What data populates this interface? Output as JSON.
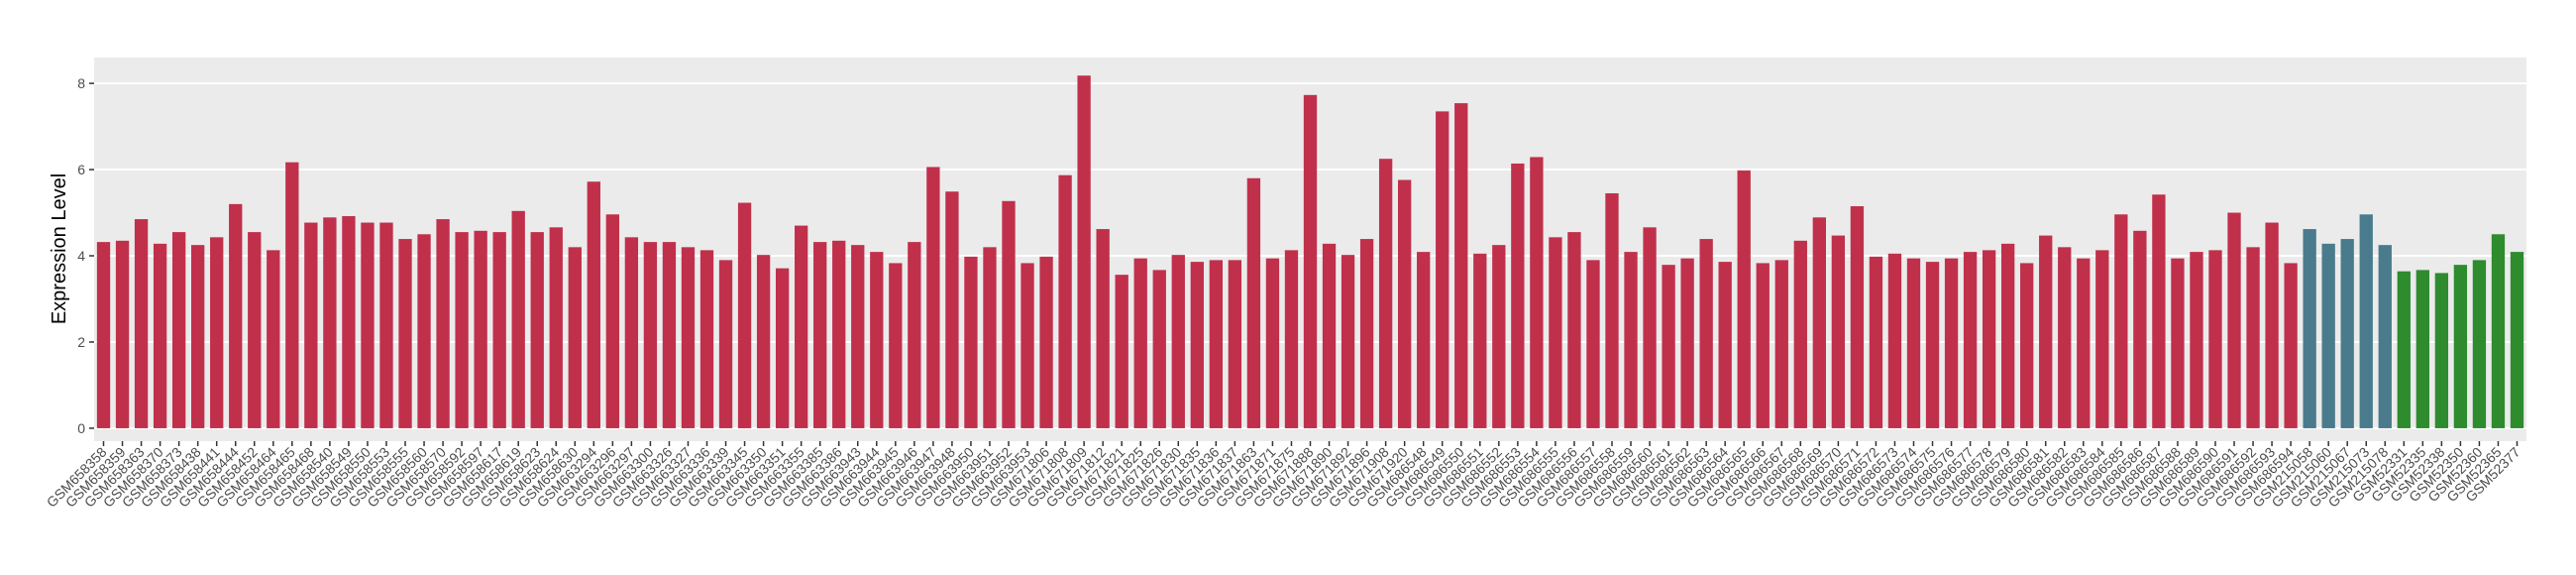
{
  "chart_data": {
    "type": "bar",
    "y_label": "Expression Level",
    "categories": [
      "GSM658358",
      "GSM658359",
      "GSM658363",
      "GSM658370",
      "GSM658373",
      "GSM658438",
      "GSM658441",
      "GSM658444",
      "GSM658452",
      "GSM658464",
      "GSM658465",
      "GSM658468",
      "GSM658540",
      "GSM658549",
      "GSM658550",
      "GSM658553",
      "GSM658555",
      "GSM658560",
      "GSM658570",
      "GSM658592",
      "GSM658597",
      "GSM658617",
      "GSM658619",
      "GSM658623",
      "GSM658624",
      "GSM658630",
      "GSM663294",
      "GSM663296",
      "GSM663297",
      "GSM663300",
      "GSM663326",
      "GSM663327",
      "GSM663336",
      "GSM663339",
      "GSM663345",
      "GSM663350",
      "GSM663351",
      "GSM663355",
      "GSM663385",
      "GSM663386",
      "GSM663943",
      "GSM663944",
      "GSM663945",
      "GSM663946",
      "GSM663947",
      "GSM663948",
      "GSM663950",
      "GSM663951",
      "GSM663952",
      "GSM663953",
      "GSM671806",
      "GSM671808",
      "GSM671809",
      "GSM671812",
      "GSM671821",
      "GSM671825",
      "GSM671826",
      "GSM671830",
      "GSM671835",
      "GSM671836",
      "GSM671837",
      "GSM671863",
      "GSM671871",
      "GSM671875",
      "GSM671888",
      "GSM671890",
      "GSM671892",
      "GSM671896",
      "GSM671908",
      "GSM671920",
      "GSM686548",
      "GSM686549",
      "GSM686550",
      "GSM686551",
      "GSM686552",
      "GSM686553",
      "GSM686554",
      "GSM686555",
      "GSM686556",
      "GSM686557",
      "GSM686558",
      "GSM686559",
      "GSM686560",
      "GSM686561",
      "GSM686562",
      "GSM686563",
      "GSM686564",
      "GSM686565",
      "GSM686566",
      "GSM686567",
      "GSM686568",
      "GSM686569",
      "GSM686570",
      "GSM686571",
      "GSM686572",
      "GSM686573",
      "GSM686574",
      "GSM686575",
      "GSM686576",
      "GSM686577",
      "GSM686578",
      "GSM686579",
      "GSM686580",
      "GSM686581",
      "GSM686582",
      "GSM686583",
      "GSM686584",
      "GSM686585",
      "GSM686586",
      "GSM686587",
      "GSM686588",
      "GSM686589",
      "GSM686590",
      "GSM686591",
      "GSM686592",
      "GSM686593",
      "GSM686594",
      "GSM215058",
      "GSM215060",
      "GSM215067",
      "GSM215073",
      "GSM215078",
      "GSM52331",
      "GSM52335",
      "GSM52338",
      "GSM52350",
      "GSM52360",
      "GSM52365",
      "GSM52377"
    ],
    "values": [
      4.32,
      4.35,
      4.85,
      4.28,
      4.55,
      4.25,
      4.43,
      5.2,
      4.55,
      4.13,
      6.17,
      4.77,
      4.89,
      4.92,
      4.77,
      4.77,
      4.39,
      4.5,
      4.85,
      4.55,
      4.58,
      4.55,
      5.04,
      4.55,
      4.66,
      4.2,
      5.72,
      4.96,
      4.43,
      4.32,
      4.32,
      4.2,
      4.13,
      3.9,
      5.23,
      4.02,
      3.71,
      4.7,
      4.32,
      4.35,
      4.25,
      4.09,
      3.83,
      4.32,
      6.06,
      5.49,
      3.98,
      4.2,
      5.27,
      3.83,
      3.98,
      5.87,
      8.18,
      4.62,
      3.56,
      3.94,
      3.67,
      4.02,
      3.86,
      3.9,
      3.9,
      5.8,
      3.94,
      4.13,
      7.73,
      4.28,
      4.02,
      4.39,
      6.25,
      5.76,
      4.09,
      7.35,
      7.54,
      4.05,
      4.25,
      6.14,
      6.29,
      4.43,
      4.55,
      3.9,
      5.45,
      4.09,
      4.66,
      3.79,
      3.94,
      4.39,
      3.86,
      5.98,
      3.83,
      3.9,
      4.35,
      4.89,
      4.47,
      5.15,
      3.98,
      4.05,
      3.94,
      3.86,
      3.94,
      4.09,
      4.13,
      4.28,
      3.83,
      4.47,
      4.2,
      3.94,
      4.13,
      4.96,
      4.58,
      5.42,
      3.94,
      4.09,
      4.13,
      5.0,
      4.2,
      4.77,
      3.83,
      4.62,
      4.28,
      4.39,
      4.96,
      4.25,
      3.64,
      3.67,
      3.6,
      3.79,
      3.9,
      4.5,
      4.09
    ],
    "colors": [
      "#c1304b",
      "#c1304b",
      "#c1304b",
      "#c1304b",
      "#c1304b",
      "#c1304b",
      "#c1304b",
      "#c1304b",
      "#c1304b",
      "#c1304b",
      "#c1304b",
      "#c1304b",
      "#c1304b",
      "#c1304b",
      "#c1304b",
      "#c1304b",
      "#c1304b",
      "#c1304b",
      "#c1304b",
      "#c1304b",
      "#c1304b",
      "#c1304b",
      "#c1304b",
      "#c1304b",
      "#c1304b",
      "#c1304b",
      "#c1304b",
      "#c1304b",
      "#c1304b",
      "#c1304b",
      "#c1304b",
      "#c1304b",
      "#c1304b",
      "#c1304b",
      "#c1304b",
      "#c1304b",
      "#c1304b",
      "#c1304b",
      "#c1304b",
      "#c1304b",
      "#c1304b",
      "#c1304b",
      "#c1304b",
      "#c1304b",
      "#c1304b",
      "#c1304b",
      "#c1304b",
      "#c1304b",
      "#c1304b",
      "#c1304b",
      "#c1304b",
      "#c1304b",
      "#c1304b",
      "#c1304b",
      "#c1304b",
      "#c1304b",
      "#c1304b",
      "#c1304b",
      "#c1304b",
      "#c1304b",
      "#c1304b",
      "#c1304b",
      "#c1304b",
      "#c1304b",
      "#c1304b",
      "#c1304b",
      "#c1304b",
      "#c1304b",
      "#c1304b",
      "#c1304b",
      "#c1304b",
      "#c1304b",
      "#c1304b",
      "#c1304b",
      "#c1304b",
      "#c1304b",
      "#c1304b",
      "#c1304b",
      "#c1304b",
      "#c1304b",
      "#c1304b",
      "#c1304b",
      "#c1304b",
      "#c1304b",
      "#c1304b",
      "#c1304b",
      "#c1304b",
      "#c1304b",
      "#c1304b",
      "#c1304b",
      "#c1304b",
      "#c1304b",
      "#c1304b",
      "#c1304b",
      "#c1304b",
      "#c1304b",
      "#c1304b",
      "#c1304b",
      "#c1304b",
      "#c1304b",
      "#c1304b",
      "#c1304b",
      "#c1304b",
      "#c1304b",
      "#c1304b",
      "#c1304b",
      "#c1304b",
      "#c1304b",
      "#c1304b",
      "#c1304b",
      "#c1304b",
      "#c1304b",
      "#c1304b",
      "#c1304b",
      "#c1304b",
      "#c1304b",
      "#c1304b",
      "#4a7b8c",
      "#4a7b8c",
      "#4a7b8c",
      "#4a7b8c",
      "#4a7b8c",
      "#2e8b2e",
      "#2e8b2e",
      "#2e8b2e",
      "#2e8b2e",
      "#2e8b2e",
      "#2e8b2e",
      "#2e8b2e"
    ],
    "ylim": [
      -0.3,
      8.6
    ],
    "yticks": [
      0,
      2,
      4,
      6,
      8
    ],
    "grid": true
  }
}
